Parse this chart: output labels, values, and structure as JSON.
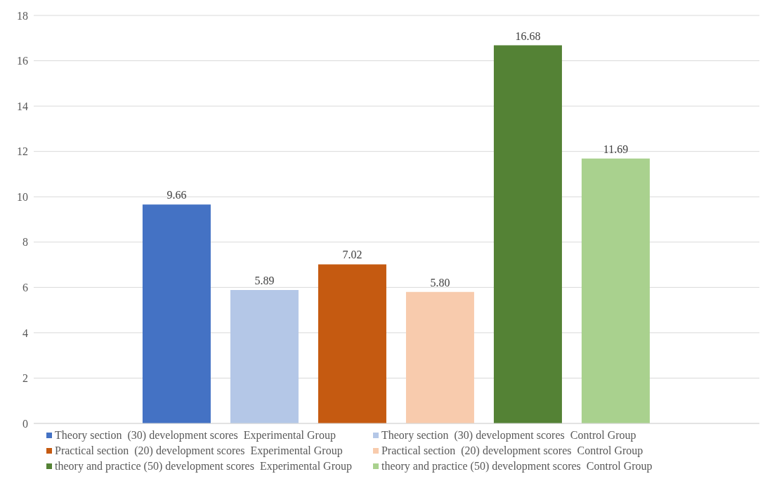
{
  "chart_data": {
    "type": "bar",
    "categories": [
      null
    ],
    "ylim": [
      0,
      18
    ],
    "yticks": [
      0,
      2,
      4,
      6,
      8,
      10,
      12,
      14,
      16,
      18
    ],
    "grid": "y",
    "legend": "bottom",
    "series": [
      {
        "name": "Theory section  (30) development scores  Experimental Group",
        "color": "#4472c4",
        "values": [
          9.66
        ],
        "value_labels": [
          "9.66"
        ]
      },
      {
        "name": "Theory section  (30) development scores  Control Group",
        "color": "#b4c7e7",
        "values": [
          5.89
        ],
        "value_labels": [
          "5.89"
        ]
      },
      {
        "name": "Practical section  (20) development scores  Experimental Group",
        "color": "#c55a11",
        "values": [
          7.02
        ],
        "value_labels": [
          "7.02"
        ]
      },
      {
        "name": "Practical section  (20) development scores  Control Group",
        "color": "#f8cbad",
        "values": [
          5.8
        ],
        "value_labels": [
          "5.80"
        ]
      },
      {
        "name": "theory and practice (50) development scores  Experimental Group",
        "color": "#548235",
        "values": [
          16.68
        ],
        "value_labels": [
          "16.68"
        ]
      },
      {
        "name": "theory and practice (50) development scores  Control Group",
        "color": "#a9d18e",
        "values": [
          11.69
        ],
        "value_labels": [
          "11.69"
        ]
      }
    ]
  }
}
